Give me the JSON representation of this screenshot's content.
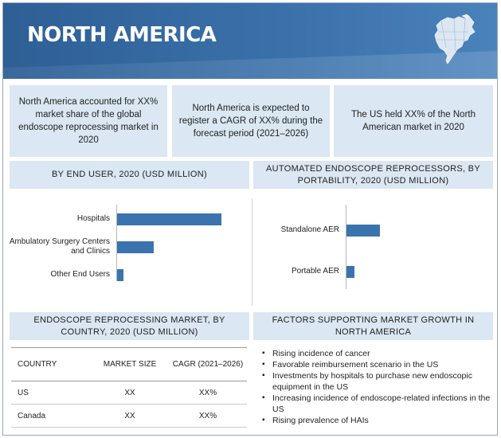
{
  "header": {
    "title": "NORTH AMERICA"
  },
  "stats": [
    "North America accounted for XX% market share of the global endoscope reprocessing market in 2020",
    "North America is expected to register a CAGR of XX% during the forecast period (2021–2026)",
    "The US held XX% of the North American market in 2020"
  ],
  "end_user_section": {
    "heading": "BY END USER, 2020 (USD MILLION)"
  },
  "aer_section": {
    "heading": "AUTOMATED ENDOSCOPE REPROCESSORS, BY PORTABILITY, 2020 (USD MILLION)"
  },
  "chart_data": [
    {
      "type": "bar",
      "orientation": "horizontal",
      "title": "BY END USER, 2020 (USD MILLION)",
      "categories": [
        "Hospitals",
        "Ambulatory Surgery Centers and Clinics",
        "Other End Users"
      ],
      "values": [
        100,
        35,
        6
      ],
      "color": "#3b73ae"
    },
    {
      "type": "bar",
      "orientation": "horizontal",
      "title": "AUTOMATED ENDOSCOPE REPROCESSORS, BY PORTABILITY, 2020 (USD MILLION)",
      "categories": [
        "Standalone AER",
        "Portable AER"
      ],
      "values": [
        100,
        24
      ],
      "color": "#3b73ae"
    }
  ],
  "country_section": {
    "heading": "ENDOSCOPE REPROCESSING MARKET, BY COUNTRY, 2020 (USD MILLION)",
    "columns": [
      "COUNTRY",
      "MARKET SIZE",
      "CAGR (2021–2026)"
    ],
    "rows": [
      [
        "US",
        "XX",
        "XX%"
      ],
      [
        "Canada",
        "XX",
        "XX%"
      ]
    ]
  },
  "factors_section": {
    "heading": "FACTORS SUPPORTING MARKET GROWTH IN NORTH AMERICA",
    "items": [
      "Rising incidence of cancer",
      "Favorable reimbursement scenario in the US",
      "Investments by hospitals to purchase new endoscopic equipment in the US",
      "Increasing incidence of endoscope-related infections in the US",
      "Rising prevalence of HAIs"
    ]
  },
  "icons": {
    "map": "north-america-map-icon"
  },
  "colors": {
    "header": "#3b72ab",
    "panel": "#dbe7f2",
    "bar": "#3b73ae"
  }
}
